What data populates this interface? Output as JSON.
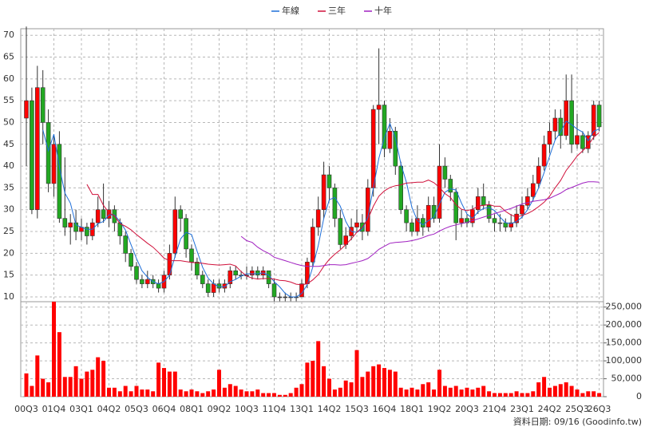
{
  "chart_data": {
    "type": "candlestick",
    "categories": [
      "00Q3",
      null,
      null,
      null,
      null,
      "01Q4",
      null,
      null,
      null,
      null,
      "03Q1",
      null,
      null,
      null,
      null,
      "04Q2",
      null,
      null,
      null,
      null,
      "05Q3",
      null,
      null,
      null,
      null,
      "06Q4",
      null,
      null,
      null,
      null,
      "08Q1",
      null,
      null,
      null,
      null,
      "09Q2",
      null,
      null,
      null,
      null,
      "10Q3",
      null,
      null,
      null,
      null,
      "11Q4",
      null,
      null,
      null,
      null,
      "13Q1",
      null,
      null,
      null,
      null,
      "14Q2",
      null,
      null,
      null,
      null,
      "15Q3",
      null,
      null,
      null,
      null,
      "16Q4",
      null,
      null,
      null,
      null,
      "18Q1",
      null,
      null,
      null,
      null,
      "19Q2",
      null,
      null,
      null,
      null,
      "20Q3",
      null,
      null,
      null,
      null,
      "21Q4",
      null,
      null,
      null,
      null,
      "23Q1",
      null,
      null,
      null,
      null,
      "24Q2",
      null,
      null,
      null,
      null,
      "25Q3",
      null,
      null,
      null,
      "26Q3"
    ],
    "ohlc": [
      [
        51,
        72,
        40,
        55
      ],
      [
        55,
        58,
        29,
        30
      ],
      [
        30,
        63,
        28,
        58
      ],
      [
        58,
        62,
        45,
        50
      ],
      [
        50,
        53,
        34,
        36
      ],
      [
        36,
        47,
        33,
        45
      ],
      [
        45,
        48,
        27,
        28
      ],
      [
        28,
        42,
        24,
        26
      ],
      [
        26,
        29,
        22,
        27
      ],
      [
        27,
        30,
        23,
        25
      ],
      [
        25,
        28,
        23,
        26
      ],
      [
        26,
        27,
        22,
        24
      ],
      [
        24,
        28,
        23,
        27
      ],
      [
        27,
        33,
        26,
        30
      ],
      [
        30,
        36,
        27,
        28
      ],
      [
        28,
        32,
        26,
        30
      ],
      [
        30,
        31,
        25,
        27
      ],
      [
        27,
        28,
        22,
        24
      ],
      [
        24,
        25,
        18,
        20
      ],
      [
        20,
        21,
        16,
        17
      ],
      [
        17,
        18,
        13,
        14
      ],
      [
        14,
        15,
        12,
        13
      ],
      [
        13,
        16,
        12,
        14
      ],
      [
        14,
        15,
        12,
        13
      ],
      [
        13,
        14,
        11,
        12
      ],
      [
        12,
        16,
        11,
        15
      ],
      [
        15,
        22,
        14,
        20
      ],
      [
        20,
        33,
        19,
        30
      ],
      [
        30,
        31,
        25,
        28
      ],
      [
        28,
        29,
        19,
        21
      ],
      [
        21,
        22,
        16,
        18
      ],
      [
        18,
        19,
        14,
        15
      ],
      [
        15,
        16,
        12,
        13
      ],
      [
        13,
        14,
        10,
        11
      ],
      [
        11,
        14,
        10,
        13
      ],
      [
        13,
        14,
        11,
        12
      ],
      [
        12,
        14,
        11,
        13
      ],
      [
        13,
        17,
        12,
        16
      ],
      [
        16,
        17,
        14,
        15
      ],
      [
        15,
        16,
        14,
        15
      ],
      [
        15,
        17,
        14,
        15
      ],
      [
        15,
        17,
        14,
        16
      ],
      [
        16,
        17,
        14,
        15
      ],
      [
        15,
        17,
        14,
        16
      ],
      [
        16,
        16,
        12,
        13
      ],
      [
        13,
        14,
        9,
        10
      ],
      [
        10,
        11,
        9,
        10
      ],
      [
        10,
        11,
        9,
        10
      ],
      [
        10,
        11,
        9,
        10
      ],
      [
        10,
        11,
        9,
        10
      ],
      [
        10,
        14,
        10,
        13
      ],
      [
        13,
        19,
        12,
        18
      ],
      [
        18,
        28,
        17,
        26
      ],
      [
        26,
        33,
        24,
        30
      ],
      [
        30,
        41,
        28,
        38
      ],
      [
        38,
        40,
        32,
        35
      ],
      [
        35,
        36,
        26,
        28
      ],
      [
        28,
        30,
        21,
        22
      ],
      [
        22,
        26,
        21,
        24
      ],
      [
        24,
        28,
        23,
        26
      ],
      [
        26,
        30,
        25,
        27
      ],
      [
        27,
        29,
        23,
        25
      ],
      [
        25,
        37,
        24,
        35
      ],
      [
        35,
        54,
        33,
        53
      ],
      [
        53,
        67,
        45,
        54
      ],
      [
        54,
        55,
        42,
        44
      ],
      [
        44,
        51,
        43,
        48
      ],
      [
        48,
        49,
        38,
        40
      ],
      [
        40,
        41,
        29,
        30
      ],
      [
        30,
        31,
        25,
        27
      ],
      [
        27,
        28,
        24,
        25
      ],
      [
        25,
        31,
        24,
        28
      ],
      [
        28,
        29,
        24,
        26
      ],
      [
        26,
        33,
        25,
        31
      ],
      [
        31,
        33,
        27,
        28
      ],
      [
        28,
        45,
        27,
        40
      ],
      [
        40,
        42,
        35,
        37
      ],
      [
        37,
        38,
        32,
        34
      ],
      [
        34,
        35,
        23,
        27
      ],
      [
        27,
        30,
        26,
        28
      ],
      [
        28,
        29,
        26,
        27
      ],
      [
        27,
        31,
        26,
        30
      ],
      [
        30,
        35,
        29,
        33
      ],
      [
        33,
        36,
        30,
        31
      ],
      [
        31,
        32,
        27,
        28
      ],
      [
        28,
        29,
        25,
        27
      ],
      [
        27,
        29,
        25,
        27
      ],
      [
        27,
        28,
        25,
        26
      ],
      [
        26,
        29,
        25,
        27
      ],
      [
        27,
        31,
        26,
        29
      ],
      [
        29,
        33,
        28,
        31
      ],
      [
        31,
        35,
        30,
        33
      ],
      [
        33,
        38,
        32,
        36
      ],
      [
        36,
        42,
        35,
        40
      ],
      [
        40,
        47,
        39,
        45
      ],
      [
        45,
        50,
        43,
        48
      ],
      [
        48,
        53,
        46,
        51
      ],
      [
        51,
        53,
        44,
        47
      ],
      [
        47,
        61,
        46,
        55
      ],
      [
        55,
        61,
        43,
        45
      ],
      [
        45,
        52,
        44,
        47
      ],
      [
        47,
        48,
        43,
        44
      ],
      [
        44,
        48,
        43,
        47
      ],
      [
        47,
        55,
        46,
        54
      ],
      [
        54,
        55,
        48,
        49
      ]
    ],
    "up_color": "#ff0000",
    "down_color": "#22a822",
    "ylim": [
      8.9,
      71.5
    ],
    "yticks": [
      10,
      15,
      20,
      25,
      30,
      35,
      40,
      45,
      50,
      55,
      60,
      65,
      70
    ],
    "grid": true,
    "series": [
      {
        "name": "年線",
        "color": "#1e6fd9",
        "values": [
          null,
          null,
          null,
          48.3,
          43.5,
          47.3,
          39.8,
          33.8,
          31.5,
          26.5,
          26,
          25.5,
          25.5,
          26.8,
          27.3,
          28.8,
          28.8,
          27.3,
          25.3,
          22,
          18.8,
          16,
          14.5,
          13.5,
          13,
          13.5,
          15,
          19.3,
          23.3,
          24.8,
          24.3,
          20.5,
          16.8,
          14.3,
          13,
          12.3,
          12.3,
          13.5,
          14,
          14.8,
          15.3,
          15.3,
          15.3,
          15.5,
          15,
          13.5,
          12.3,
          10.8,
          10,
          10,
          10.8,
          12.8,
          16.8,
          21.8,
          28,
          32.3,
          32.8,
          30.8,
          27.3,
          25,
          24.8,
          25.5,
          28.3,
          35,
          41.8,
          46.5,
          49.8,
          46.5,
          40.5,
          36.3,
          30.5,
          27.5,
          26.5,
          27.5,
          28.3,
          31.3,
          34,
          34.8,
          34.5,
          31.5,
          29,
          28,
          29.5,
          30.3,
          30.5,
          29.8,
          28.3,
          27,
          26.8,
          27.3,
          28.3,
          30,
          32.3,
          35,
          38.5,
          42.3,
          46,
          47.8,
          50.3,
          49.5,
          48.5,
          47.8,
          45.8,
          48,
          48.5
        ]
      },
      {
        "name": "三年",
        "color": "#d0103a",
        "values": [
          null,
          null,
          null,
          null,
          null,
          null,
          null,
          null,
          null,
          null,
          null,
          35.8,
          33.5,
          33.5,
          31,
          29.3,
          28.6,
          26.8,
          26.2,
          25.4,
          24.3,
          23.3,
          22.3,
          21.4,
          20.2,
          18.9,
          18.3,
          18.3,
          18.3,
          18.1,
          17.9,
          17.8,
          17.7,
          17.5,
          17.4,
          17.3,
          17.4,
          17.5,
          17.1,
          15.8,
          14.8,
          14.3,
          14.1,
          14.2,
          14.2,
          14.1,
          13.8,
          13.7,
          13.4,
          12.9,
          12.8,
          13,
          13.9,
          15.1,
          17,
          18.6,
          19.8,
          20.8,
          22,
          23.3,
          24.8,
          26,
          27.8,
          30.8,
          33.1,
          34.3,
          35.1,
          35.5,
          35.7,
          36.1,
          36.2,
          36.3,
          36.3,
          36.8,
          36.2,
          35.1,
          33.7,
          32.8,
          31.1,
          30.1,
          29.8,
          30.1,
          30.8,
          31,
          31.2,
          30.8,
          30.8,
          29.6,
          28.8,
          28.3,
          28.7,
          29.1,
          29.8,
          30.7,
          31.7,
          33.1,
          35,
          36.7,
          39,
          40.6,
          42.3,
          43.5,
          44.8,
          46.6,
          47.7
        ]
      },
      {
        "name": "十年",
        "color": "#a020c0",
        "values": [
          null,
          null,
          null,
          null,
          null,
          null,
          null,
          null,
          null,
          null,
          null,
          null,
          null,
          null,
          null,
          null,
          null,
          null,
          null,
          null,
          null,
          null,
          null,
          null,
          null,
          null,
          null,
          null,
          null,
          null,
          null,
          null,
          null,
          null,
          null,
          null,
          null,
          null,
          null,
          23.9,
          22.9,
          22.5,
          21.4,
          20.6,
          20,
          19.1,
          18.7,
          18.3,
          17.9,
          17.5,
          17.2,
          17,
          17,
          17,
          17.2,
          17.4,
          17.4,
          17.3,
          17.4,
          17.7,
          18,
          18.3,
          18.8,
          19.8,
          20.9,
          21.6,
          22.3,
          22.5,
          22.6,
          22.7,
          22.9,
          23.2,
          23.6,
          24.1,
          24.4,
          25.1,
          25.7,
          26.2,
          26.5,
          26.8,
          27.1,
          27.5,
          27.9,
          28.3,
          28.7,
          29.1,
          29.5,
          29.9,
          30.3,
          30.8,
          31.3,
          31.6,
          31.9,
          32.1,
          32.3,
          32.6,
          33.2,
          33.8,
          34.6,
          35.1,
          35.6,
          36.1,
          36.4,
          36.4,
          36.3
        ]
      }
    ],
    "volume": {
      "color": "#ff0000",
      "ylim": [
        0,
        265000
      ],
      "yticks": [
        0,
        {
          "value": 50000,
          "label": "50,000"
        },
        {
          "value": 100000,
          "label": "100,000"
        },
        {
          "value": 150000,
          "label": "150,000"
        },
        {
          "value": 200000,
          "label": "200,000"
        },
        {
          "value": 250000,
          "label": "250,000"
        }
      ],
      "values": [
        65000,
        30000,
        115000,
        50000,
        40000,
        265000,
        180000,
        55000,
        55000,
        85000,
        50000,
        70000,
        75000,
        110000,
        100000,
        25000,
        25000,
        15000,
        30000,
        15000,
        30000,
        20000,
        20000,
        15000,
        95000,
        80000,
        70000,
        70000,
        20000,
        15000,
        20000,
        15000,
        10000,
        15000,
        20000,
        75000,
        25000,
        35000,
        30000,
        20000,
        15000,
        15000,
        20000,
        10000,
        10000,
        10000,
        5000,
        5000,
        10000,
        25000,
        35000,
        95000,
        100000,
        155000,
        85000,
        50000,
        20000,
        25000,
        45000,
        40000,
        130000,
        55000,
        70000,
        85000,
        90000,
        80000,
        75000,
        70000,
        25000,
        20000,
        25000,
        20000,
        35000,
        40000,
        20000,
        75000,
        30000,
        25000,
        30000,
        20000,
        25000,
        20000,
        25000,
        30000,
        15000,
        10000,
        10000,
        10000,
        10000,
        15000,
        10000,
        10000,
        15000,
        40000,
        55000,
        25000,
        30000,
        35000,
        40000,
        30000,
        20000,
        10000,
        15000,
        15000,
        10000
      ]
    },
    "footnote": "資料日期: 09/16 (Goodinfo.tw)"
  }
}
